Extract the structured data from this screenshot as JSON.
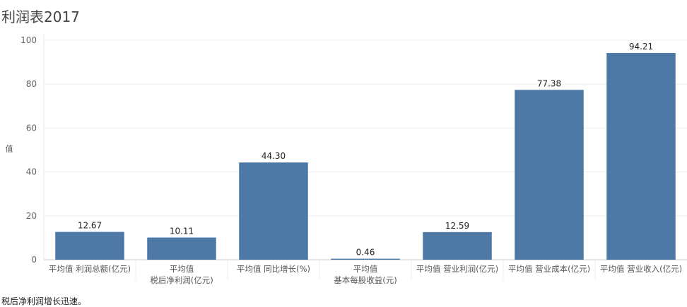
{
  "title": "利润表2017",
  "footnote": "税后净利润增长迅速。",
  "chart_data": {
    "type": "bar",
    "ylabel": "值",
    "ylim": [
      0,
      100
    ],
    "yticks": [
      0,
      20,
      40,
      60,
      80,
      100
    ],
    "grid": true,
    "categories": [
      [
        "平均值 利润总额(亿元)"
      ],
      [
        "平均值",
        "税后净利润(亿元)"
      ],
      [
        "平均值 同比增长(%)"
      ],
      [
        "平均值",
        "基本每股收益(元)"
      ],
      [
        "平均值 营业利润(亿元)"
      ],
      [
        "平均值 营业成本(亿元)"
      ],
      [
        "平均值 营业收入(亿元)"
      ]
    ],
    "values": [
      12.67,
      10.11,
      44.3,
      0.46,
      12.59,
      77.38,
      94.21
    ],
    "value_labels": [
      "12.67",
      "10.11",
      "44.30",
      "0.46",
      "12.59",
      "77.38",
      "94.21"
    ],
    "bar_color": "#4e79a7"
  }
}
